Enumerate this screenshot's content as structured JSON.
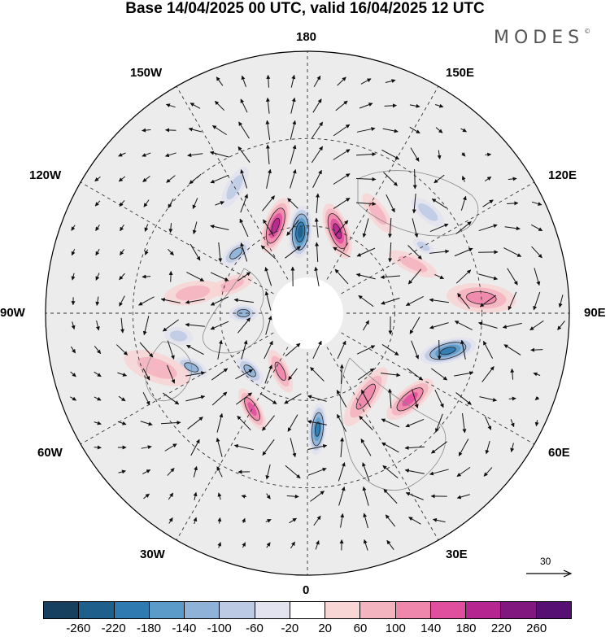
{
  "title": "Base 14/04/2025 00 UTC, valid 16/04/2025 12 UTC",
  "brand": "MODES",
  "longitude_labels": {
    "n180": "180",
    "w150": "150W",
    "e150": "150E",
    "w120": "120W",
    "e120": "120E",
    "w90": "90W",
    "e90": "90E",
    "w60": "60W",
    "e60": "60E",
    "w30": "30W",
    "e30": "30E",
    "zero": "0"
  },
  "reference_vector": {
    "label": "30"
  },
  "colorbar": {
    "ticks": [
      "-260",
      "-220",
      "-180",
      "-140",
      "-100",
      "-60",
      "-20",
      "20",
      "60",
      "100",
      "140",
      "180",
      "220",
      "260"
    ],
    "colors": [
      "#17405e",
      "#1f5f8b",
      "#2f7ab0",
      "#5b9bc9",
      "#8fb3d8",
      "#bccbe3",
      "#e3e3f0",
      "#ffffff",
      "#f8d6d6",
      "#f4b4bf",
      "#ef86ac",
      "#e04f9e",
      "#b52690",
      "#80187f",
      "#561073"
    ]
  },
  "anomalies": [
    {
      "lon": 175,
      "lat": 62,
      "v": -220,
      "a": 9,
      "b": 4
    },
    {
      "lon": -160,
      "lat": 60,
      "v": 180,
      "a": 10,
      "b": 4
    },
    {
      "lon": 160,
      "lat": 58,
      "v": 180,
      "a": 10,
      "b": 4
    },
    {
      "lon": 130,
      "lat": 58,
      "v": -100,
      "a": 6,
      "b": 3
    },
    {
      "lon": -115,
      "lat": 50,
      "v": 60,
      "a": 9,
      "b": 3
    },
    {
      "lon": -120,
      "lat": 44,
      "v": -60,
      "a": 4,
      "b": 2
    },
    {
      "lon": -95,
      "lat": 30,
      "v": 100,
      "a": 12,
      "b": 5
    },
    {
      "lon": -75,
      "lat": 40,
      "v": -180,
      "a": 10,
      "b": 4
    },
    {
      "lon": -50,
      "lat": 44,
      "v": 140,
      "a": 10,
      "b": 4
    },
    {
      "lon": -35,
      "lat": 55,
      "v": 100,
      "a": 12,
      "b": 4
    },
    {
      "lon": -5,
      "lat": 50,
      "v": -180,
      "a": 9,
      "b": 3
    },
    {
      "lon": 30,
      "lat": 52,
      "v": 140,
      "a": 8,
      "b": 3
    },
    {
      "lon": 25,
      "lat": 68,
      "v": 100,
      "a": 8,
      "b": 3
    },
    {
      "lon": 45,
      "lat": 62,
      "v": -100,
      "a": 6,
      "b": 3
    },
    {
      "lon": 65,
      "lat": 46,
      "v": -100,
      "a": 6,
      "b": 3
    },
    {
      "lon": 90,
      "lat": 68,
      "v": -100,
      "a": 5,
      "b": 3
    },
    {
      "lon": 80,
      "lat": 45,
      "v": -60,
      "a": 5,
      "b": 3
    },
    {
      "lon": 110,
      "lat": 62,
      "v": 60,
      "a": 8,
      "b": 3
    },
    {
      "lon": 100,
      "lat": 50,
      "v": 60,
      "a": 10,
      "b": 4
    },
    {
      "lon": 70,
      "lat": 35,
      "v": 60,
      "a": 12,
      "b": 5
    },
    {
      "lon": -145,
      "lat": 48,
      "v": 60,
      "a": 8,
      "b": 3
    },
    {
      "lon": 150,
      "lat": 40,
      "v": -60,
      "a": 8,
      "b": 3
    },
    {
      "lon": -130,
      "lat": 36,
      "v": -60,
      "a": 7,
      "b": 3
    }
  ]
}
